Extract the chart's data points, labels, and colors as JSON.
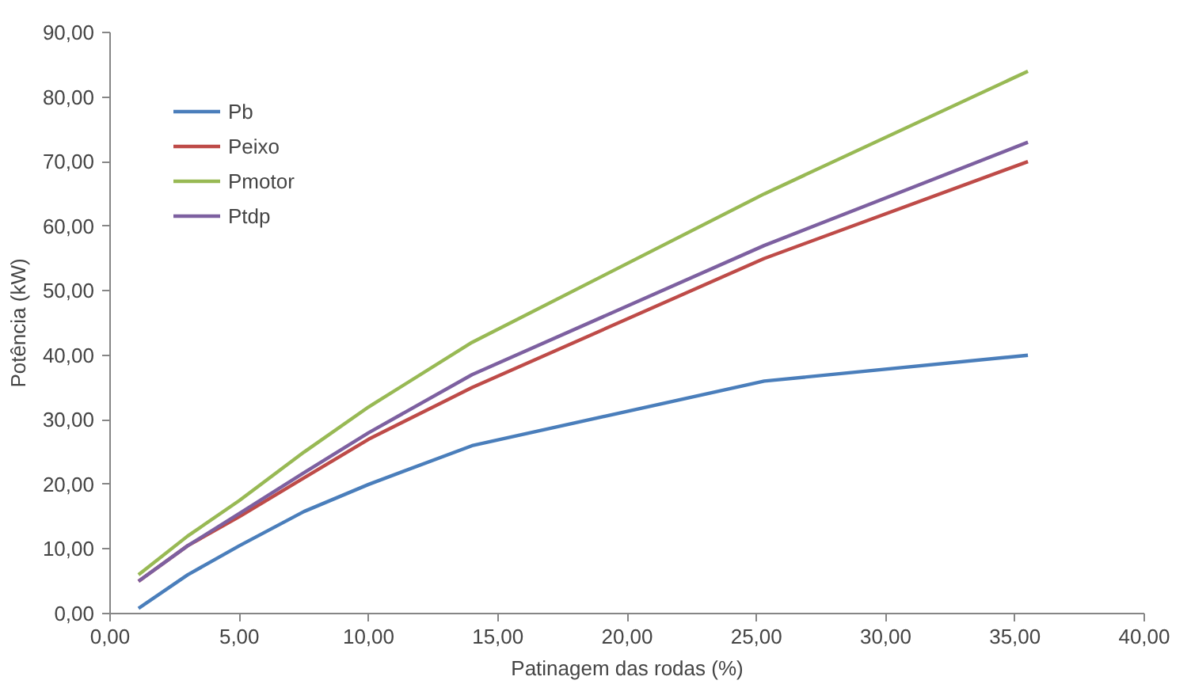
{
  "chart_data": {
    "type": "line",
    "xlabel": "Patinagem das rodas (%)",
    "ylabel": "Potência (kW)",
    "xlim": [
      0,
      40
    ],
    "ylim": [
      0,
      90
    ],
    "xticks": [
      {
        "value": 0,
        "label": "0,00"
      },
      {
        "value": 5,
        "label": "5,00"
      },
      {
        "value": 10,
        "label": "10,00"
      },
      {
        "value": 15,
        "label": "15,00"
      },
      {
        "value": 20,
        "label": "20,00"
      },
      {
        "value": 25,
        "label": "25,00"
      },
      {
        "value": 30,
        "label": "30,00"
      },
      {
        "value": 35,
        "label": "35,00"
      },
      {
        "value": 40,
        "label": "40,00"
      }
    ],
    "yticks": [
      {
        "value": 0,
        "label": "0,00"
      },
      {
        "value": 10,
        "label": "10,00"
      },
      {
        "value": 20,
        "label": "20,00"
      },
      {
        "value": 30,
        "label": "30,00"
      },
      {
        "value": 40,
        "label": "40,00"
      },
      {
        "value": 50,
        "label": "50,00"
      },
      {
        "value": 60,
        "label": "60,00"
      },
      {
        "value": 70,
        "label": "70,00"
      },
      {
        "value": 80,
        "label": "80,00"
      },
      {
        "value": 90,
        "label": "90,00"
      }
    ],
    "x": [
      1.1,
      3,
      5,
      7.5,
      10,
      14,
      25.3,
      35.5
    ],
    "series": [
      {
        "name": "Pb",
        "color": "#4a7ebb",
        "values": [
          0.8,
          6,
          10.5,
          15.8,
          20,
          26,
          36,
          40
        ]
      },
      {
        "name": "Peixo",
        "color": "#be4b48",
        "values": [
          5,
          10.5,
          15,
          21,
          27,
          35,
          55,
          70
        ]
      },
      {
        "name": "Pmotor",
        "color": "#98b954",
        "values": [
          6,
          12,
          17.5,
          25,
          32,
          42,
          65,
          84
        ]
      },
      {
        "name": "Ptdp",
        "color": "#7d60a0",
        "values": [
          5,
          10.5,
          15.5,
          21.8,
          28,
          37,
          57,
          73
        ]
      }
    ],
    "legend": "top left",
    "grid": false,
    "marker": "none",
    "line_style": "solid"
  }
}
